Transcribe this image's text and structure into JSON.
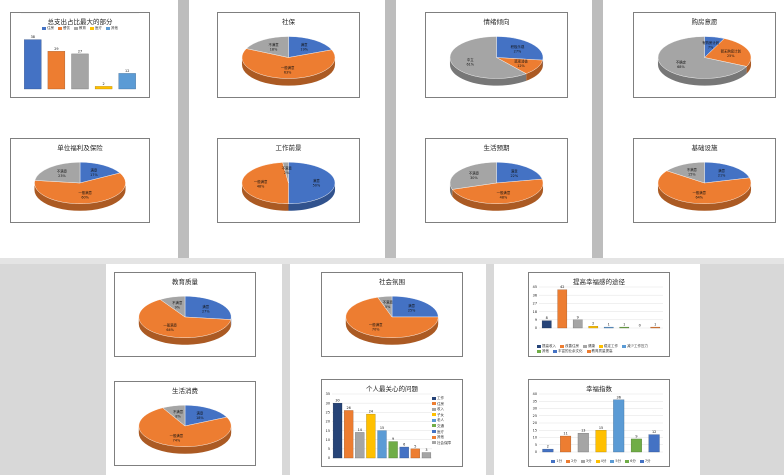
{
  "colors": {
    "blue": "#4472C4",
    "orange": "#ED7D31",
    "gray": "#A5A5A5",
    "yellow": "#FFC000",
    "lightblue": "#5B9BD5",
    "green": "#70AD47",
    "darkblue": "#264478"
  },
  "charts": {
    "c1": {
      "title": "总支出占比最大的部分",
      "legend": [
        "住房",
        "餐饮",
        "教育",
        "医疗",
        "其他"
      ],
      "chart_data": {
        "type": "bar",
        "categories": [
          "住房",
          "餐饮",
          "教育",
          "医疗",
          "其他"
        ],
        "values": [
          38,
          29,
          27,
          2,
          12
        ]
      }
    },
    "c2": {
      "title": "社保",
      "chart_data": {
        "type": "pie",
        "slices": [
          {
            "label": "满意",
            "value": 19,
            "color": "blue"
          },
          {
            "label": "一般满意",
            "value": 63,
            "color": "orange"
          },
          {
            "label": "不满意",
            "value": 18,
            "color": "gray"
          }
        ]
      }
    },
    "c3": {
      "title": "情绪倾向",
      "chart_data": {
        "type": "pie",
        "slices": [
          {
            "label": "积极乐观",
            "value": 27,
            "color": "blue"
          },
          {
            "label": "悲观消极",
            "value": 12,
            "color": "orange"
          },
          {
            "label": "中立",
            "value": 61,
            "color": "gray"
          }
        ]
      }
    },
    "c4": {
      "title": "购房意愿",
      "chart_data": {
        "type": "pie",
        "slices": [
          {
            "label": "有购房计划",
            "value": 7,
            "color": "blue"
          },
          {
            "label": "暂无购房计划",
            "value": 25,
            "color": "orange"
          },
          {
            "label": "不确定",
            "value": 68,
            "color": "gray"
          }
        ]
      }
    },
    "c5": {
      "title": "单位福利及保险",
      "chart_data": {
        "type": "pie",
        "slices": [
          {
            "label": "满意",
            "value": 17,
            "color": "blue"
          },
          {
            "label": "一般满意",
            "value": 60,
            "color": "orange"
          },
          {
            "label": "不满意",
            "value": 23,
            "color": "gray"
          }
        ]
      }
    },
    "c6": {
      "title": "工作前景",
      "chart_data": {
        "type": "pie",
        "slices": [
          {
            "label": "满意",
            "value": 50,
            "color": "blue"
          },
          {
            "label": "一般满意",
            "value": 48,
            "color": "orange"
          },
          {
            "label": "不满意",
            "value": 2,
            "color": "gray"
          }
        ]
      }
    },
    "c7": {
      "title": "生活预期",
      "chart_data": {
        "type": "pie",
        "slices": [
          {
            "label": "满意",
            "value": 22,
            "color": "blue"
          },
          {
            "label": "一般满意",
            "value": 48,
            "color": "orange"
          },
          {
            "label": "不满意",
            "value": 30,
            "color": "gray"
          }
        ]
      }
    },
    "c8": {
      "title": "基础设施",
      "chart_data": {
        "type": "pie",
        "slices": [
          {
            "label": "满意",
            "value": 21,
            "color": "blue"
          },
          {
            "label": "一般满意",
            "value": 64,
            "color": "orange"
          },
          {
            "label": "不满意",
            "value": 15,
            "color": "gray"
          }
        ]
      }
    },
    "c9": {
      "title": "教育质量",
      "chart_data": {
        "type": "pie",
        "slices": [
          {
            "label": "满意",
            "value": 27,
            "color": "blue"
          },
          {
            "label": "一般满意",
            "value": 64,
            "color": "orange"
          },
          {
            "label": "不满意",
            "value": 9,
            "color": "gray"
          }
        ]
      }
    },
    "c10": {
      "title": "社会氛围",
      "chart_data": {
        "type": "pie",
        "slices": [
          {
            "label": "满意",
            "value": 25,
            "color": "blue"
          },
          {
            "label": "一般满意",
            "value": 70,
            "color": "orange"
          },
          {
            "label": "不满意",
            "value": 5,
            "color": "gray"
          }
        ]
      }
    },
    "c11": {
      "title": "提高幸福感的途径",
      "legend": [
        "提高收入",
        "改善住房",
        "健康",
        "稳定工作",
        "减少工作压力",
        "其他",
        "丰富的业余文化",
        "教育质量提高"
      ],
      "chart_data": {
        "type": "bar",
        "categories": [
          "1",
          "2",
          "3",
          "4",
          "5",
          "6",
          "7",
          "8"
        ],
        "values": [
          8,
          42,
          9,
          2,
          1,
          1,
          0,
          1
        ]
      }
    },
    "c12": {
      "title": "生活消费",
      "chart_data": {
        "type": "pie",
        "slices": [
          {
            "label": "满意",
            "value": 18,
            "color": "blue"
          },
          {
            "label": "一般满意",
            "value": 74,
            "color": "orange"
          },
          {
            "label": "不满意",
            "value": 8,
            "color": "gray"
          }
        ]
      }
    },
    "c13": {
      "title": "个人最关心的问题",
      "legend": [
        "工作",
        "住房",
        "收入",
        "子女",
        "老人",
        "交通",
        "医疗",
        "其他",
        "社会保障"
      ],
      "chart_data": {
        "type": "bar",
        "categories": [
          "1",
          "2",
          "3",
          "4",
          "5",
          "6",
          "7",
          "8",
          "9"
        ],
        "values": [
          30,
          26,
          14,
          24,
          15,
          9,
          6,
          5,
          3
        ]
      }
    },
    "c14": {
      "title": "幸福指数",
      "legend": [
        "1分",
        "2分",
        "3分",
        "4分",
        "5分",
        "6分",
        "7分"
      ],
      "chart_data": {
        "type": "bar",
        "categories": [
          "1",
          "2",
          "3",
          "4",
          "5",
          "6",
          "7"
        ],
        "values": [
          2,
          11,
          13,
          15,
          36,
          9,
          12
        ]
      }
    }
  }
}
